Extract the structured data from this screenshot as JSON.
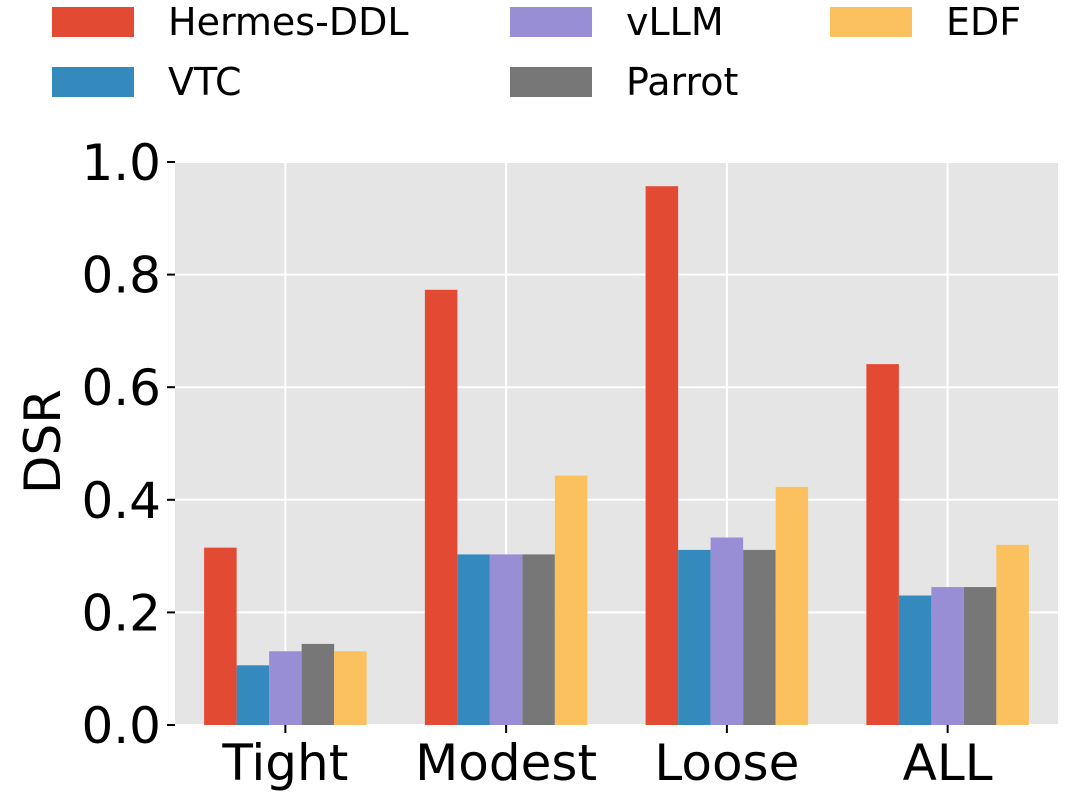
{
  "chart_data": {
    "type": "bar",
    "title": "",
    "xlabel": "",
    "ylabel": "DSR",
    "ylim": [
      0,
      1.0
    ],
    "yticks": [
      "0.0",
      "0.2",
      "0.4",
      "0.6",
      "0.8",
      "1.0"
    ],
    "grid": true,
    "legend_position": "top",
    "categories": [
      "Tight",
      "Modest",
      "Loose",
      "ALL"
    ],
    "series": [
      {
        "name": "Hermes-DDL",
        "color": "#E24A33",
        "values": [
          0.315,
          0.773,
          0.957,
          0.641
        ]
      },
      {
        "name": "VTC",
        "color": "#348ABD",
        "values": [
          0.106,
          0.303,
          0.311,
          0.23
        ]
      },
      {
        "name": "vLLM",
        "color": "#988ED5",
        "values": [
          0.131,
          0.303,
          0.333,
          0.245
        ]
      },
      {
        "name": "Parrot",
        "color": "#777777",
        "values": [
          0.144,
          0.303,
          0.311,
          0.245
        ]
      },
      {
        "name": "EDF",
        "color": "#FBC15E",
        "values": [
          0.131,
          0.443,
          0.423,
          0.32
        ]
      }
    ]
  },
  "style": {
    "plot_background": "#E5E5E5",
    "grid_color": "#FFFFFF"
  }
}
